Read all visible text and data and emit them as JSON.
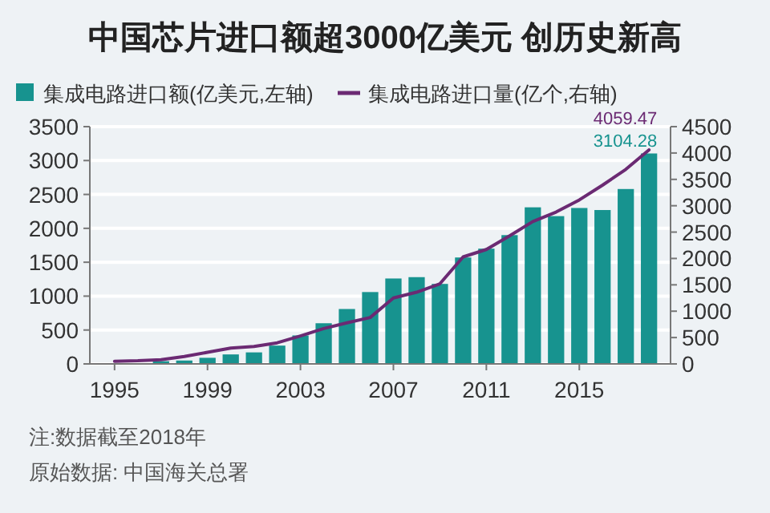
{
  "chart_data": {
    "type": "bar",
    "title": "中国芯片进口额超3000亿美元 创历史新高",
    "categories": [
      "1995",
      null,
      null,
      null,
      "1999",
      null,
      null,
      null,
      "2003",
      null,
      null,
      null,
      "2007",
      null,
      null,
      null,
      "2011",
      null,
      null,
      null,
      "2015",
      null,
      null,
      null
    ],
    "series": [
      {
        "name": "集成电路进口额(亿美元,左轴)",
        "color": "#17938f",
        "values": [
          null,
          null,
          40,
          50,
          90,
          140,
          170,
          270,
          420,
          600,
          810,
          1060,
          1260,
          1280,
          1180,
          1570,
          1700,
          1900,
          2310,
          2180,
          2300,
          2270,
          2580,
          3104.28
        ],
        "value_labels": [
          null,
          null,
          null,
          null,
          null,
          null,
          null,
          null,
          null,
          null,
          null,
          null,
          null,
          null,
          null,
          null,
          null,
          null,
          null,
          null,
          null,
          null,
          null,
          "3104.28"
        ]
      },
      {
        "name": "集成电路进口量(亿个,右轴)",
        "type": "line",
        "axis": "y2",
        "color": "#6b2a73",
        "values": [
          50,
          60,
          80,
          140,
          220,
          300,
          330,
          400,
          530,
          670,
          780,
          880,
          1250,
          1360,
          1520,
          2030,
          2170,
          2430,
          2700,
          2880,
          3110,
          3390,
          3690,
          4059.47
        ],
        "value_labels": [
          null,
          null,
          null,
          null,
          null,
          null,
          null,
          null,
          null,
          null,
          null,
          null,
          null,
          null,
          null,
          null,
          null,
          null,
          null,
          null,
          null,
          null,
          null,
          "4059.47"
        ]
      }
    ],
    "ylim": [
      0,
      3500
    ],
    "yticks": [
      0,
      500,
      1000,
      1500,
      2000,
      2500,
      3000,
      3500
    ],
    "y2lim": [
      0,
      4500
    ],
    "y2ticks": [
      0,
      500,
      1000,
      1500,
      2000,
      2500,
      3000,
      3500,
      4000,
      4500
    ],
    "grid": "y",
    "legend": "top left",
    "annotations": [
      "注:数据截至2018年",
      "原始数据: 中国海关总署"
    ]
  }
}
